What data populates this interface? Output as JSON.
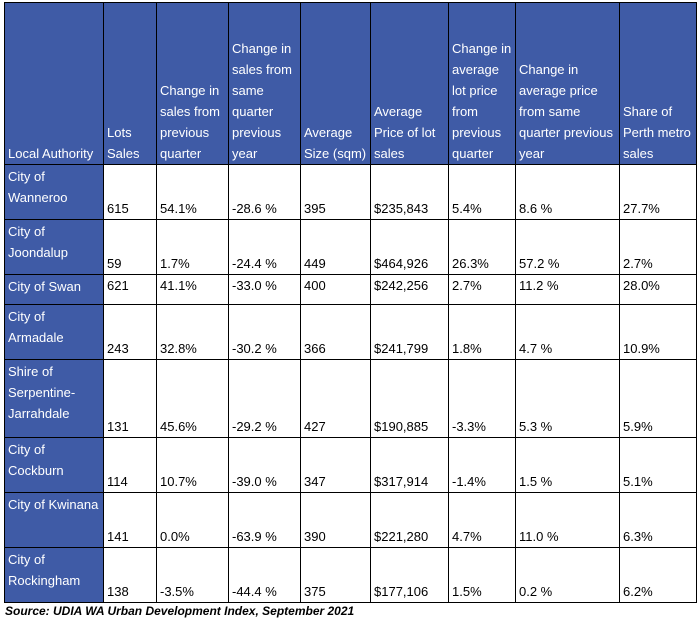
{
  "table": {
    "headers": [
      "Local Authority",
      "Lots Sales",
      "Change in sales from previous quarter",
      "Change in sales from same quarter previous year",
      "Average Size (sqm)",
      "Average Price of lot sales",
      "Change in average lot price from previous quarter",
      "Change in average price from same quarter previous year",
      "Share of Perth metro sales"
    ],
    "rows": [
      {
        "authority": "City of Wanneroo",
        "lots": "615",
        "chg_prev_q": "54.1%",
        "chg_prev_y": "-28.6 %",
        "size": "395",
        "price": "$235,843",
        "price_chg_q": "5.4%",
        "price_chg_y": "8.6 %",
        "share": "27.7%"
      },
      {
        "authority": "City of Joondalup",
        "lots": "59",
        "chg_prev_q": "1.7%",
        "chg_prev_y": "-24.4 %",
        "size": "449",
        "price": "$464,926",
        "price_chg_q": "26.3%",
        "price_chg_y": "57.2 %",
        "share": "2.7%"
      },
      {
        "authority": "City of Swan",
        "lots": "621",
        "chg_prev_q": "41.1%",
        "chg_prev_y": "-33.0 %",
        "size": "400",
        "price": "$242,256",
        "price_chg_q": "2.7%",
        "price_chg_y": "11.2 %",
        "share": "28.0%"
      },
      {
        "authority": "City of Armadale",
        "lots": "243",
        "chg_prev_q": "32.8%",
        "chg_prev_y": "-30.2 %",
        "size": "366",
        "price": "$241,799",
        "price_chg_q": "1.8%",
        "price_chg_y": "4.7 %",
        "share": "10.9%"
      },
      {
        "authority": "Shire of Serpentine-Jarrahdale",
        "lots": "131",
        "chg_prev_q": "45.6%",
        "chg_prev_y": "-29.2 %",
        "size": "427",
        "price": "$190,885",
        "price_chg_q": "-3.3%",
        "price_chg_y": "5.3 %",
        "share": "5.9%"
      },
      {
        "authority": "City of Cockburn",
        "lots": "114",
        "chg_prev_q": "10.7%",
        "chg_prev_y": "-39.0 %",
        "size": "347",
        "price": "$317,914",
        "price_chg_q": "-1.4%",
        "price_chg_y": "1.5 %",
        "share": "5.1%"
      },
      {
        "authority": "City of Kwinana",
        "lots": "141",
        "chg_prev_q": "0.0%",
        "chg_prev_y": "-63.9 %",
        "size": "390",
        "price": "$221,280",
        "price_chg_q": "4.7%",
        "price_chg_y": "11.0 %",
        "share": "6.3%"
      },
      {
        "authority": "City of Rockingham",
        "lots": "138",
        "chg_prev_q": "-3.5%",
        "chg_prev_y": "-44.4 %",
        "size": "375",
        "price": "$177,106",
        "price_chg_q": "1.5%",
        "price_chg_y": "0.2 %",
        "share": "6.2%"
      }
    ]
  },
  "source": "Source: UDIA WA Urban Development Index, September 2021",
  "colors": {
    "header_fill": "#3f5ba6",
    "header_text": "#ffffff",
    "border": "#000000"
  }
}
